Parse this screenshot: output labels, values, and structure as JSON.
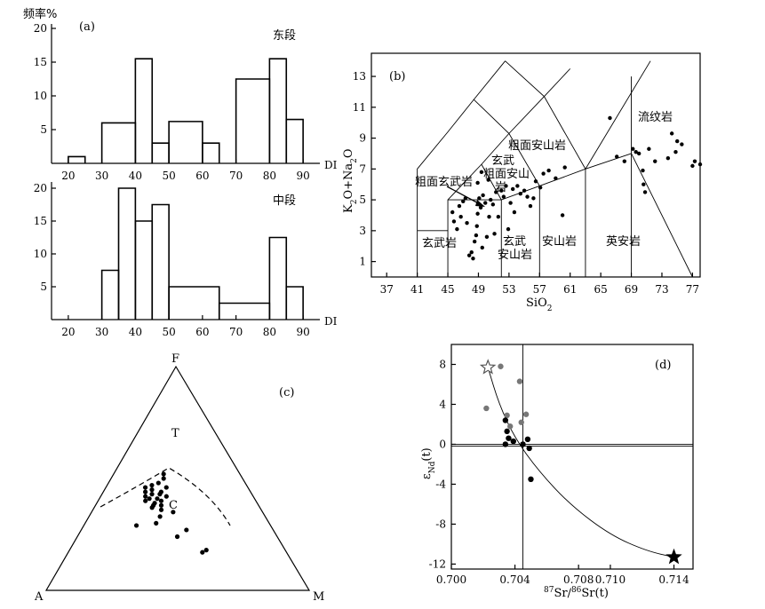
{
  "chart_data": [
    {
      "panel": "(a)",
      "type": "histogram",
      "ylabel": "频率%",
      "xlabel": "DI",
      "subplots": [
        {
          "title": "东段",
          "x_ticks": [
            20,
            30,
            40,
            50,
            60,
            70,
            80,
            90
          ],
          "y_ticks": [
            5,
            10,
            15,
            20
          ],
          "xlim": [
            15,
            95
          ],
          "ylim": [
            0,
            20
          ],
          "bins": [
            {
              "x0": 20,
              "x1": 25,
              "value": 1
            },
            {
              "x0": 30,
              "x1": 40,
              "value": 6
            },
            {
              "x0": 40,
              "x1": 45,
              "value": 15.5
            },
            {
              "x0": 45,
              "x1": 50,
              "value": 3
            },
            {
              "x0": 50,
              "x1": 60,
              "value": 6.2
            },
            {
              "x0": 60,
              "x1": 65,
              "value": 3
            },
            {
              "x0": 70,
              "x1": 80,
              "value": 12.5
            },
            {
              "x0": 80,
              "x1": 85,
              "value": 15.5
            },
            {
              "x0": 85,
              "x1": 90,
              "value": 6.5
            }
          ]
        },
        {
          "title": "中段",
          "x_ticks": [
            20,
            30,
            40,
            50,
            60,
            70,
            80,
            90
          ],
          "y_ticks": [
            5,
            10,
            15,
            20
          ],
          "xlim": [
            15,
            95
          ],
          "ylim": [
            0,
            20
          ],
          "bins": [
            {
              "x0": 30,
              "x1": 35,
              "value": 7.5
            },
            {
              "x0": 35,
              "x1": 40,
              "value": 20
            },
            {
              "x0": 40,
              "x1": 45,
              "value": 15
            },
            {
              "x0": 45,
              "x1": 50,
              "value": 17.5
            },
            {
              "x0": 50,
              "x1": 65,
              "value": 5
            },
            {
              "x0": 65,
              "x1": 80,
              "value": 2.5
            },
            {
              "x0": 80,
              "x1": 85,
              "value": 12.5
            },
            {
              "x0": 85,
              "x1": 90,
              "value": 5
            }
          ]
        }
      ]
    },
    {
      "panel": "(b)",
      "type": "scatter",
      "xlabel": "SiO2",
      "ylabel": "K2O+Na2O",
      "xlim": [
        35,
        78
      ],
      "ylim": [
        0,
        14.5
      ],
      "x_ticks": [
        37,
        41,
        45,
        49,
        53,
        57,
        61,
        65,
        69,
        73,
        77
      ],
      "y_ticks": [
        1,
        3,
        5,
        7,
        9,
        11,
        13
      ],
      "field_labels": [
        "流纹岩",
        "粗面安山岩",
        "玄武",
        "粗面安山",
        "岩",
        "粗面玄武岩",
        "玄武岩",
        "玄武",
        "安山岩",
        "安山岩",
        "英安岩"
      ],
      "points": [
        [
          45.6,
          4.2
        ],
        [
          45.8,
          3.6
        ],
        [
          46.2,
          3.1
        ],
        [
          46.5,
          4.6
        ],
        [
          46.7,
          3.9
        ],
        [
          47.0,
          4.9
        ],
        [
          47.3,
          5.1
        ],
        [
          47.5,
          3.5
        ],
        [
          47.8,
          1.4
        ],
        [
          48.1,
          1.6
        ],
        [
          48.3,
          1.2
        ],
        [
          48.5,
          2.3
        ],
        [
          48.7,
          2.7
        ],
        [
          48.8,
          3.3
        ],
        [
          48.9,
          4.1
        ],
        [
          49.1,
          5.1
        ],
        [
          49.3,
          4.5
        ],
        [
          49.5,
          1.9
        ],
        [
          49.6,
          5.3
        ],
        [
          49.9,
          4.8
        ],
        [
          50.1,
          2.6
        ],
        [
          50.4,
          3.9
        ],
        [
          50.6,
          5.0
        ],
        [
          50.9,
          4.7
        ],
        [
          51.1,
          2.8
        ],
        [
          51.3,
          5.5
        ],
        [
          51.6,
          3.9
        ],
        [
          52.0,
          5.6
        ],
        [
          52.3,
          5.2
        ],
        [
          52.6,
          5.9
        ],
        [
          52.9,
          3.1
        ],
        [
          53.2,
          4.8
        ],
        [
          53.5,
          5.7
        ],
        [
          53.7,
          4.2
        ],
        [
          54.1,
          5.9
        ],
        [
          54.5,
          5.4
        ],
        [
          55.0,
          5.6
        ],
        [
          55.4,
          5.2
        ],
        [
          55.8,
          4.6
        ],
        [
          56.2,
          5.1
        ],
        [
          56.5,
          6.2
        ],
        [
          57.1,
          5.8
        ],
        [
          57.5,
          6.7
        ],
        [
          58.2,
          6.9
        ],
        [
          59.1,
          6.4
        ],
        [
          60.0,
          4.0
        ],
        [
          60.3,
          7.1
        ],
        [
          48.9,
          6.1
        ],
        [
          50.3,
          6.3
        ],
        [
          49.4,
          6.8
        ],
        [
          66.2,
          10.3
        ],
        [
          67.1,
          7.8
        ],
        [
          68.1,
          7.5
        ],
        [
          69.2,
          8.3
        ],
        [
          69.6,
          8.1
        ],
        [
          70.0,
          8.0
        ],
        [
          70.5,
          6.9
        ],
        [
          70.6,
          6.0
        ],
        [
          70.8,
          5.5
        ],
        [
          71.3,
          8.3
        ],
        [
          72.1,
          7.5
        ],
        [
          73.8,
          7.7
        ],
        [
          74.3,
          9.3
        ],
        [
          74.8,
          8.1
        ],
        [
          75.0,
          8.8
        ],
        [
          75.6,
          8.6
        ],
        [
          77.0,
          7.2
        ],
        [
          77.3,
          7.5
        ],
        [
          78.0,
          7.3
        ]
      ]
    },
    {
      "panel": "(c)",
      "type": "ternary",
      "vertices": {
        "top": "F",
        "left": "A",
        "right": "M"
      },
      "labels": [
        "T",
        "C"
      ],
      "points_FAM": [
        [
          0.44,
          0.4,
          0.16
        ],
        [
          0.42,
          0.41,
          0.17
        ],
        [
          0.41,
          0.4,
          0.19
        ],
        [
          0.43,
          0.38,
          0.19
        ],
        [
          0.4,
          0.42,
          0.18
        ],
        [
          0.45,
          0.37,
          0.18
        ],
        [
          0.46,
          0.39,
          0.15
        ],
        [
          0.39,
          0.39,
          0.22
        ],
        [
          0.38,
          0.4,
          0.22
        ],
        [
          0.41,
          0.37,
          0.22
        ],
        [
          0.37,
          0.41,
          0.22
        ],
        [
          0.43,
          0.35,
          0.22
        ],
        [
          0.4,
          0.36,
          0.24
        ],
        [
          0.44,
          0.34,
          0.22
        ],
        [
          0.38,
          0.37,
          0.25
        ],
        [
          0.42,
          0.33,
          0.25
        ],
        [
          0.47,
          0.36,
          0.17
        ],
        [
          0.48,
          0.33,
          0.19
        ],
        [
          0.5,
          0.3,
          0.2
        ],
        [
          0.52,
          0.29,
          0.19
        ],
        [
          0.46,
          0.31,
          0.23
        ],
        [
          0.36,
          0.38,
          0.26
        ],
        [
          0.3,
          0.43,
          0.27
        ],
        [
          0.27,
          0.33,
          0.4
        ],
        [
          0.24,
          0.38,
          0.38
        ],
        [
          0.18,
          0.3,
          0.52
        ],
        [
          0.17,
          0.32,
          0.51
        ],
        [
          0.33,
          0.4,
          0.27
        ],
        [
          0.35,
          0.34,
          0.31
        ],
        [
          0.29,
          0.51,
          0.2
        ]
      ]
    },
    {
      "panel": "(d)",
      "type": "scatter",
      "xlabel": "87Sr/86Sr(t)",
      "ylabel": "εNd(t)",
      "xlim": [
        0.7,
        0.7152
      ],
      "ylim": [
        -12.5,
        10
      ],
      "x_ticks": [
        0.7,
        0.704,
        0.708,
        0.71,
        0.714
      ],
      "x_tick_labels": [
        "0.700",
        "0.704",
        "0.708",
        "0.710",
        "0.714"
      ],
      "y_ticks": [
        8,
        4,
        0,
        -4,
        -8,
        -12
      ],
      "y_tick_labels": [
        "8",
        "4",
        "0",
        "-4",
        "-8",
        "-12"
      ],
      "reference_lines": {
        "x": 0.7045,
        "y": 0
      },
      "end_members": [
        {
          "marker": "open-star",
          "x": 0.7023,
          "y": 7.7
        },
        {
          "marker": "filled-star",
          "x": 0.714,
          "y": -11.3
        }
      ],
      "grey_points": [
        [
          0.7031,
          7.8
        ],
        [
          0.7043,
          6.3
        ],
        [
          0.7022,
          3.6
        ],
        [
          0.7035,
          2.9
        ],
        [
          0.7044,
          2.2
        ],
        [
          0.7047,
          3.0
        ],
        [
          0.7037,
          1.8
        ]
      ],
      "black_points": [
        [
          0.7034,
          2.4
        ],
        [
          0.7035,
          1.3
        ],
        [
          0.7036,
          0.6
        ],
        [
          0.7034,
          0.0
        ],
        [
          0.7039,
          0.3
        ],
        [
          0.7045,
          0.0
        ],
        [
          0.7049,
          -0.4
        ],
        [
          0.705,
          -3.5
        ],
        [
          0.7048,
          0.5
        ]
      ],
      "mixing_curve": [
        [
          0.7023,
          7.7
        ],
        [
          0.703,
          4.0
        ],
        [
          0.704,
          0.6
        ],
        [
          0.7055,
          -2.7
        ],
        [
          0.7075,
          -6.1
        ],
        [
          0.71,
          -9.1
        ],
        [
          0.7123,
          -10.7
        ],
        [
          0.714,
          -11.3
        ]
      ]
    }
  ]
}
